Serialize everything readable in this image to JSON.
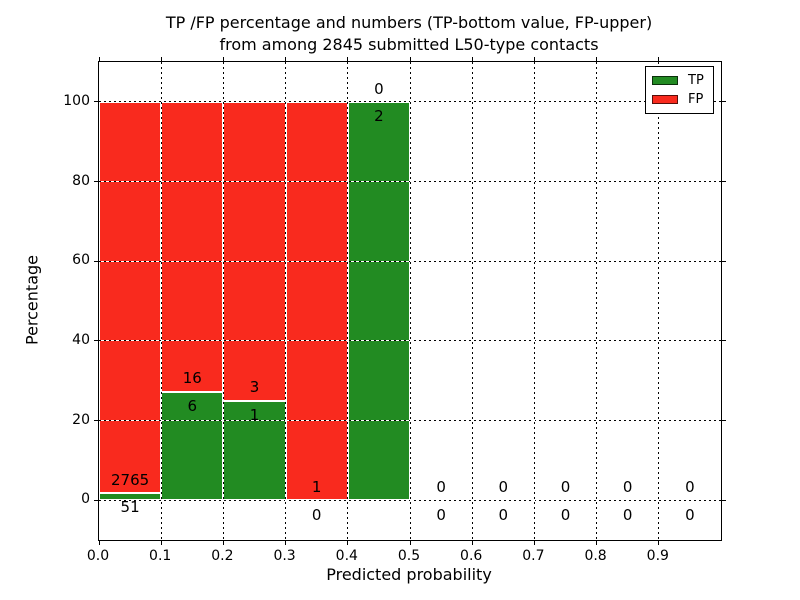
{
  "figure": {
    "title_line1": "TP /FP percentage and numbers (TP-bottom value, FP-upper)",
    "title_line2": "from among 2845 submitted L50-type contacts"
  },
  "chart_data": {
    "type": "bar",
    "stacked": true,
    "title": "TP /FP percentage and numbers (TP-bottom value, FP-upper) from among 2845 submitted L50-type contacts",
    "xlabel": "Predicted probability",
    "ylabel": "Percentage",
    "xlim": [
      0.0,
      1.0
    ],
    "ylim": [
      -10,
      110
    ],
    "xticks": [
      "0.0",
      "0.1",
      "0.2",
      "0.3",
      "0.4",
      "0.5",
      "0.6",
      "0.7",
      "0.8",
      "0.9"
    ],
    "yticks": [
      0,
      20,
      40,
      60,
      80,
      100
    ],
    "grid": "dotted",
    "grid_above_bars": true,
    "legend_position": "upper right",
    "bin_width": 0.1,
    "total_contacts": 2845,
    "series": [
      {
        "name": "TP",
        "color": "#228b22",
        "position": "bottom"
      },
      {
        "name": "FP",
        "color": "#f92a1e",
        "position": "top"
      }
    ],
    "bins": [
      {
        "range": [
          0.0,
          0.1
        ],
        "tp": 51,
        "fp": 2765
      },
      {
        "range": [
          0.1,
          0.2
        ],
        "tp": 6,
        "fp": 16
      },
      {
        "range": [
          0.2,
          0.3
        ],
        "tp": 1,
        "fp": 3
      },
      {
        "range": [
          0.3,
          0.4
        ],
        "tp": 0,
        "fp": 1
      },
      {
        "range": [
          0.4,
          0.5
        ],
        "tp": 2,
        "fp": 0
      },
      {
        "range": [
          0.5,
          0.6
        ],
        "tp": 0,
        "fp": 0
      },
      {
        "range": [
          0.6,
          0.7
        ],
        "tp": 0,
        "fp": 0
      },
      {
        "range": [
          0.7,
          0.8
        ],
        "tp": 0,
        "fp": 0
      },
      {
        "range": [
          0.8,
          0.9
        ],
        "tp": 0,
        "fp": 0
      },
      {
        "range": [
          0.9,
          1.0
        ],
        "tp": 0,
        "fp": 0
      }
    ]
  },
  "legend": {
    "items": [
      {
        "label": "TP",
        "color": "#228b22"
      },
      {
        "label": "FP",
        "color": "#f92a1e"
      }
    ]
  },
  "colors": {
    "tp_green": "#228b22",
    "fp_red": "#f92a1e",
    "grid": "#000000",
    "background": "#ffffff",
    "text": "#000000"
  }
}
